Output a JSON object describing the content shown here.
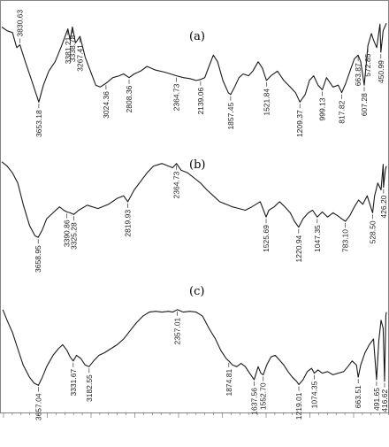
{
  "chart_data": [
    {
      "type": "line",
      "label": "(a)",
      "x_reversed": true,
      "xlim": [
        4000,
        400
      ],
      "ylim": [
        0,
        1
      ],
      "points": [
        [
          4000,
          0.92
        ],
        [
          3950,
          0.88
        ],
        [
          3900,
          0.86
        ],
        [
          3860,
          0.7
        ],
        [
          3830.63,
          0.73
        ],
        [
          3780,
          0.55
        ],
        [
          3720,
          0.35
        ],
        [
          3653.18,
          0.12
        ],
        [
          3610,
          0.3
        ],
        [
          3560,
          0.45
        ],
        [
          3500,
          0.55
        ],
        [
          3440,
          0.72
        ],
        [
          3381.21,
          0.9
        ],
        [
          3360,
          0.78
        ],
        [
          3338.78,
          0.92
        ],
        [
          3310,
          0.75
        ],
        [
          3267.41,
          0.82
        ],
        [
          3220,
          0.6
        ],
        [
          3170,
          0.45
        ],
        [
          3120,
          0.3
        ],
        [
          3080,
          0.28
        ],
        [
          3024.36,
          0.32
        ],
        [
          2960,
          0.38
        ],
        [
          2900,
          0.4
        ],
        [
          2860,
          0.42
        ],
        [
          2808.36,
          0.38
        ],
        [
          2760,
          0.42
        ],
        [
          2700,
          0.45
        ],
        [
          2640,
          0.5
        ],
        [
          2560,
          0.46
        ],
        [
          2480,
          0.44
        ],
        [
          2420,
          0.42
        ],
        [
          2364.73,
          0.4
        ],
        [
          2300,
          0.38
        ],
        [
          2240,
          0.37
        ],
        [
          2180,
          0.35
        ],
        [
          2139.06,
          0.36
        ],
        [
          2100,
          0.38
        ],
        [
          2060,
          0.5
        ],
        [
          2020,
          0.62
        ],
        [
          1980,
          0.55
        ],
        [
          1930,
          0.35
        ],
        [
          1880,
          0.22
        ],
        [
          1857.45,
          0.2
        ],
        [
          1820,
          0.28
        ],
        [
          1780,
          0.38
        ],
        [
          1740,
          0.42
        ],
        [
          1690,
          0.4
        ],
        [
          1650,
          0.45
        ],
        [
          1600,
          0.55
        ],
        [
          1560,
          0.48
        ],
        [
          1521.84,
          0.35
        ],
        [
          1480,
          0.4
        ],
        [
          1420,
          0.45
        ],
        [
          1360,
          0.35
        ],
        [
          1300,
          0.28
        ],
        [
          1250,
          0.22
        ],
        [
          1209.37,
          0.12
        ],
        [
          1160,
          0.2
        ],
        [
          1120,
          0.35
        ],
        [
          1080,
          0.4
        ],
        [
          1040,
          0.3
        ],
        [
          999.13,
          0.25
        ],
        [
          960,
          0.38
        ],
        [
          900,
          0.28
        ],
        [
          850,
          0.3
        ],
        [
          817.82,
          0.22
        ],
        [
          780,
          0.32
        ],
        [
          740,
          0.45
        ],
        [
          700,
          0.58
        ],
        [
          663.87,
          0.62
        ],
        [
          640,
          0.55
        ],
        [
          607.28,
          0.3
        ],
        [
          590,
          0.5
        ],
        [
          572.85,
          0.72
        ],
        [
          540,
          0.85
        ],
        [
          520,
          0.78
        ],
        [
          490,
          0.7
        ],
        [
          460,
          0.95
        ],
        [
          450.99,
          0.65
        ],
        [
          430,
          0.88
        ],
        [
          400,
          0.96
        ]
      ],
      "peaks": [
        {
          "x": 3830.63,
          "label": "3830.63",
          "pos": "above"
        },
        {
          "x": 3653.18,
          "label": "3653.18",
          "pos": "below"
        },
        {
          "x": 3381.21,
          "label": "3381.21",
          "pos": "below"
        },
        {
          "x": 3338.78,
          "label": "3338.78",
          "pos": "below"
        },
        {
          "x": 3267.41,
          "label": "3267.41",
          "pos": "below"
        },
        {
          "x": 3024.36,
          "label": "3024.36",
          "pos": "below"
        },
        {
          "x": 2808.36,
          "label": "2808.36",
          "pos": "below"
        },
        {
          "x": 2364.73,
          "label": "2364.73",
          "pos": "below"
        },
        {
          "x": 2139.06,
          "label": "2139.06",
          "pos": "below"
        },
        {
          "x": 1857.45,
          "label": "1857.45",
          "pos": "below"
        },
        {
          "x": 1521.84,
          "label": "1521.84",
          "pos": "below"
        },
        {
          "x": 1209.37,
          "label": "1209.37",
          "pos": "below"
        },
        {
          "x": 999.13,
          "label": "999.13",
          "pos": "below"
        },
        {
          "x": 817.82,
          "label": "817.82",
          "pos": "below"
        },
        {
          "x": 663.87,
          "label": "663.87",
          "pos": "below"
        },
        {
          "x": 607.28,
          "label": "607.28",
          "pos": "below"
        },
        {
          "x": 572.85,
          "label": "572.85",
          "pos": "below"
        },
        {
          "x": 450.99,
          "label": "450.99",
          "pos": "below"
        }
      ]
    },
    {
      "type": "line",
      "label": "(b)",
      "x_reversed": true,
      "xlim": [
        4000,
        400
      ],
      "ylim": [
        0,
        1
      ],
      "points": [
        [
          4000,
          0.95
        ],
        [
          3950,
          0.9
        ],
        [
          3900,
          0.82
        ],
        [
          3850,
          0.7
        ],
        [
          3800,
          0.45
        ],
        [
          3740,
          0.2
        ],
        [
          3690,
          0.08
        ],
        [
          3658.95,
          0.06
        ],
        [
          3620,
          0.15
        ],
        [
          3580,
          0.28
        ],
        [
          3520,
          0.35
        ],
        [
          3460,
          0.42
        ],
        [
          3420,
          0.38
        ],
        [
          3390.86,
          0.36
        ],
        [
          3360,
          0.35
        ],
        [
          3325.28,
          0.33
        ],
        [
          3280,
          0.38
        ],
        [
          3200,
          0.44
        ],
        [
          3100,
          0.4
        ],
        [
          3000,
          0.45
        ],
        [
          2920,
          0.52
        ],
        [
          2860,
          0.55
        ],
        [
          2819.93,
          0.48
        ],
        [
          2760,
          0.62
        ],
        [
          2700,
          0.72
        ],
        [
          2640,
          0.82
        ],
        [
          2580,
          0.9
        ],
        [
          2500,
          0.93
        ],
        [
          2440,
          0.9
        ],
        [
          2400,
          0.88
        ],
        [
          2364.73,
          0.93
        ],
        [
          2320,
          0.85
        ],
        [
          2260,
          0.82
        ],
        [
          2200,
          0.76
        ],
        [
          2140,
          0.7
        ],
        [
          2080,
          0.62
        ],
        [
          2020,
          0.55
        ],
        [
          1960,
          0.48
        ],
        [
          1900,
          0.45
        ],
        [
          1840,
          0.42
        ],
        [
          1780,
          0.4
        ],
        [
          1720,
          0.38
        ],
        [
          1660,
          0.42
        ],
        [
          1620,
          0.45
        ],
        [
          1580,
          0.48
        ],
        [
          1525.69,
          0.3
        ],
        [
          1500,
          0.38
        ],
        [
          1450,
          0.42
        ],
        [
          1400,
          0.48
        ],
        [
          1350,
          0.42
        ],
        [
          1300,
          0.35
        ],
        [
          1260,
          0.25
        ],
        [
          1220.94,
          0.18
        ],
        [
          1180,
          0.28
        ],
        [
          1130,
          0.35
        ],
        [
          1090,
          0.38
        ],
        [
          1047.35,
          0.3
        ],
        [
          1000,
          0.36
        ],
        [
          950,
          0.3
        ],
        [
          900,
          0.35
        ],
        [
          860,
          0.32
        ],
        [
          820,
          0.28
        ],
        [
          783.1,
          0.25
        ],
        [
          740,
          0.32
        ],
        [
          700,
          0.42
        ],
        [
          660,
          0.5
        ],
        [
          620,
          0.45
        ],
        [
          580,
          0.55
        ],
        [
          528.5,
          0.35
        ],
        [
          510,
          0.55
        ],
        [
          480,
          0.7
        ],
        [
          450,
          0.62
        ],
        [
          430,
          0.92
        ],
        [
          426.2,
          0.65
        ],
        [
          410,
          0.85
        ],
        [
          400,
          0.9
        ]
      ],
      "peaks": [
        {
          "x": 3658.95,
          "label": "3658.95",
          "pos": "below"
        },
        {
          "x": 3390.86,
          "label": "3390.86",
          "pos": "below"
        },
        {
          "x": 3325.28,
          "label": "3325.28",
          "pos": "below"
        },
        {
          "x": 2819.93,
          "label": "2819.93",
          "pos": "below"
        },
        {
          "x": 2364.73,
          "label": "2364.73",
          "pos": "below"
        },
        {
          "x": 1525.69,
          "label": "1525.69",
          "pos": "below"
        },
        {
          "x": 1220.94,
          "label": "1220.94",
          "pos": "below"
        },
        {
          "x": 1047.35,
          "label": "1047.35",
          "pos": "below"
        },
        {
          "x": 783.1,
          "label": "783.10",
          "pos": "below"
        },
        {
          "x": 528.5,
          "label": "528.50",
          "pos": "below"
        },
        {
          "x": 426.2,
          "label": "426.20",
          "pos": "below"
        }
      ]
    },
    {
      "type": "line",
      "label": "(c)",
      "x_reversed": true,
      "xlim": [
        4000,
        400
      ],
      "ylim": [
        0,
        1
      ],
      "points": [
        [
          3990,
          0.98
        ],
        [
          3950,
          0.85
        ],
        [
          3900,
          0.7
        ],
        [
          3850,
          0.5
        ],
        [
          3800,
          0.3
        ],
        [
          3740,
          0.15
        ],
        [
          3700,
          0.08
        ],
        [
          3657.04,
          0.05
        ],
        [
          3620,
          0.15
        ],
        [
          3580,
          0.28
        ],
        [
          3520,
          0.42
        ],
        [
          3470,
          0.5
        ],
        [
          3430,
          0.55
        ],
        [
          3390,
          0.48
        ],
        [
          3360,
          0.4
        ],
        [
          3331.67,
          0.35
        ],
        [
          3300,
          0.42
        ],
        [
          3260,
          0.38
        ],
        [
          3220,
          0.3
        ],
        [
          3182.55,
          0.28
        ],
        [
          3140,
          0.35
        ],
        [
          3090,
          0.42
        ],
        [
          3040,
          0.45
        ],
        [
          2980,
          0.5
        ],
        [
          2920,
          0.55
        ],
        [
          2860,
          0.62
        ],
        [
          2800,
          0.72
        ],
        [
          2740,
          0.82
        ],
        [
          2680,
          0.9
        ],
        [
          2620,
          0.95
        ],
        [
          2560,
          0.96
        ],
        [
          2500,
          0.95
        ],
        [
          2440,
          0.96
        ],
        [
          2400,
          0.95
        ],
        [
          2357.01,
          0.98
        ],
        [
          2300,
          0.95
        ],
        [
          2240,
          0.96
        ],
        [
          2180,
          0.95
        ],
        [
          2120,
          0.9
        ],
        [
          2060,
          0.75
        ],
        [
          2000,
          0.62
        ],
        [
          1950,
          0.48
        ],
        [
          1900,
          0.38
        ],
        [
          1874.81,
          0.35
        ],
        [
          1840,
          0.3
        ],
        [
          1800,
          0.28
        ],
        [
          1760,
          0.32
        ],
        [
          1720,
          0.28
        ],
        [
          1680,
          0.2
        ],
        [
          1637.56,
          0.12
        ],
        [
          1600,
          0.28
        ],
        [
          1575,
          0.2
        ],
        [
          1552.7,
          0.18
        ],
        [
          1520,
          0.3
        ],
        [
          1480,
          0.4
        ],
        [
          1440,
          0.42
        ],
        [
          1400,
          0.36
        ],
        [
          1360,
          0.3
        ],
        [
          1320,
          0.22
        ],
        [
          1280,
          0.15
        ],
        [
          1240,
          0.1
        ],
        [
          1219.01,
          0.06
        ],
        [
          1180,
          0.12
        ],
        [
          1140,
          0.22
        ],
        [
          1100,
          0.26
        ],
        [
          1074.35,
          0.2
        ],
        [
          1040,
          0.24
        ],
        [
          1000,
          0.2
        ],
        [
          950,
          0.22
        ],
        [
          900,
          0.18
        ],
        [
          850,
          0.2
        ],
        [
          800,
          0.22
        ],
        [
          760,
          0.28
        ],
        [
          720,
          0.35
        ],
        [
          680,
          0.3
        ],
        [
          663.51,
          0.15
        ],
        [
          640,
          0.3
        ],
        [
          600,
          0.45
        ],
        [
          560,
          0.55
        ],
        [
          520,
          0.62
        ],
        [
          491.65,
          0.12
        ],
        [
          470,
          0.6
        ],
        [
          450,
          0.85
        ],
        [
          430,
          0.75
        ],
        [
          416.62,
          0.1
        ],
        [
          405,
          0.9
        ],
        [
          400,
          0.95
        ]
      ],
      "peaks": [
        {
          "x": 3657.04,
          "label": "3657.04",
          "pos": "below"
        },
        {
          "x": 3331.67,
          "label": "3331.67",
          "pos": "below"
        },
        {
          "x": 3182.55,
          "label": "3182.55",
          "pos": "below"
        },
        {
          "x": 2357.01,
          "label": "2357.01",
          "pos": "below"
        },
        {
          "x": 1874.81,
          "label": "1874.81",
          "pos": "below"
        },
        {
          "x": 1637.56,
          "label": "1637.56",
          "pos": "below"
        },
        {
          "x": 1552.7,
          "label": "1552.70",
          "pos": "below"
        },
        {
          "x": 1219.01,
          "label": "1219.01",
          "pos": "below"
        },
        {
          "x": 1074.35,
          "label": "1074.35",
          "pos": "below"
        },
        {
          "x": 663.51,
          "label": "663.51",
          "pos": "below"
        },
        {
          "x": 491.65,
          "label": "491.65",
          "pos": "below"
        },
        {
          "x": 416.62,
          "label": "416.62",
          "pos": "below"
        }
      ]
    }
  ]
}
